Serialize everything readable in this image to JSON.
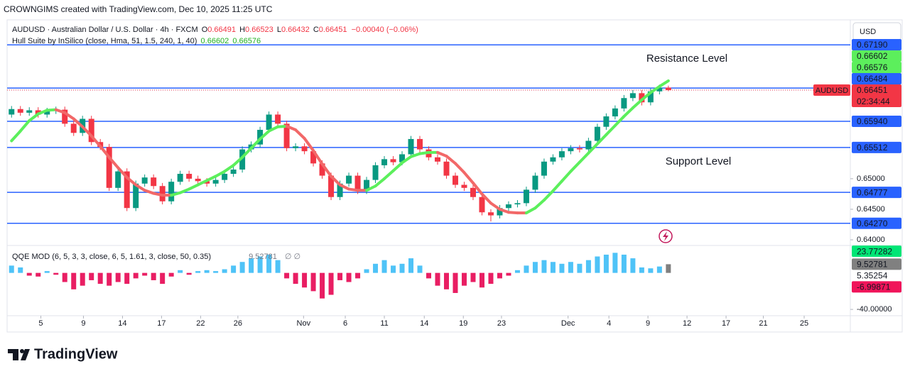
{
  "header": {
    "attribution": "CROWNGIMS created with TradingView.com, Dec 10, 2025 11:25 UTC",
    "logo": "TradingView",
    "currency": "USD",
    "annotations": [
      "Resistance Level",
      "Support Level"
    ]
  },
  "chart_data": [
    {
      "type": "candlestick",
      "symbol_line": "AUDUSD · Australian Dollar / U.S. Dollar · 4h · FXCM",
      "ohlc_letters": [
        "O",
        "H",
        "L",
        "C"
      ],
      "change": "−0.00040 (−0.06%)",
      "up_color": "#089981",
      "down_color": "#f23645",
      "ohlc": [
        [
          0.6605,
          0.6619,
          0.66,
          0.6614
        ],
        [
          0.6614,
          0.6619,
          0.6603,
          0.6608
        ],
        [
          0.6608,
          0.6617,
          0.6603,
          0.6612
        ],
        [
          0.6612,
          0.6617,
          0.66,
          0.6605
        ],
        [
          0.6605,
          0.6616,
          0.66,
          0.6611
        ],
        [
          0.6611,
          0.6618,
          0.6606,
          0.6613
        ],
        [
          0.6613,
          0.6618,
          0.6585,
          0.659
        ],
        [
          0.659,
          0.6595,
          0.657,
          0.6575
        ],
        [
          0.6575,
          0.6603,
          0.657,
          0.6598
        ],
        [
          0.6598,
          0.6603,
          0.6555,
          0.656
        ],
        [
          0.656,
          0.6565,
          0.6547,
          0.6552
        ],
        [
          0.6552,
          0.6557,
          0.648,
          0.6485
        ],
        [
          0.6485,
          0.6517,
          0.648,
          0.6512
        ],
        [
          0.6512,
          0.6517,
          0.6447,
          0.6452
        ],
        [
          0.6452,
          0.6497,
          0.6447,
          0.6492
        ],
        [
          0.6492,
          0.6507,
          0.6487,
          0.6502
        ],
        [
          0.6502,
          0.6507,
          0.6483,
          0.6488
        ],
        [
          0.6488,
          0.6493,
          0.6458,
          0.6463
        ],
        [
          0.6463,
          0.65,
          0.6458,
          0.6495
        ],
        [
          0.6495,
          0.6513,
          0.649,
          0.6508
        ],
        [
          0.6508,
          0.6513,
          0.6495,
          0.65
        ],
        [
          0.65,
          0.6505,
          0.6491,
          0.6496
        ],
        [
          0.6496,
          0.6501,
          0.6487,
          0.6492
        ],
        [
          0.6492,
          0.6503,
          0.6487,
          0.6498
        ],
        [
          0.6498,
          0.6513,
          0.6493,
          0.6508
        ],
        [
          0.6508,
          0.652,
          0.6503,
          0.6515
        ],
        [
          0.6515,
          0.6553,
          0.651,
          0.6548
        ],
        [
          0.6548,
          0.6561,
          0.6543,
          0.6556
        ],
        [
          0.6556,
          0.6585,
          0.6551,
          0.658
        ],
        [
          0.658,
          0.661,
          0.6575,
          0.6605
        ],
        [
          0.6605,
          0.661,
          0.6585,
          0.659
        ],
        [
          0.659,
          0.6595,
          0.6545,
          0.655
        ],
        [
          0.655,
          0.6558,
          0.6545,
          0.6553
        ],
        [
          0.6553,
          0.6558,
          0.654,
          0.6545
        ],
        [
          0.6545,
          0.655,
          0.652,
          0.6525
        ],
        [
          0.6525,
          0.653,
          0.65,
          0.6505
        ],
        [
          0.6505,
          0.651,
          0.6465,
          0.647
        ],
        [
          0.647,
          0.6497,
          0.6465,
          0.6492
        ],
        [
          0.6492,
          0.651,
          0.6487,
          0.6505
        ],
        [
          0.6505,
          0.651,
          0.6475,
          0.648
        ],
        [
          0.648,
          0.6503,
          0.6475,
          0.6498
        ],
        [
          0.6498,
          0.6527,
          0.6493,
          0.6522
        ],
        [
          0.6522,
          0.6537,
          0.6517,
          0.6532
        ],
        [
          0.6532,
          0.6537,
          0.6522,
          0.6527
        ],
        [
          0.6527,
          0.6545,
          0.6522,
          0.654
        ],
        [
          0.654,
          0.657,
          0.6535,
          0.6565
        ],
        [
          0.6565,
          0.657,
          0.6543,
          0.6548
        ],
        [
          0.6548,
          0.6553,
          0.653,
          0.6535
        ],
        [
          0.6535,
          0.654,
          0.6523,
          0.6528
        ],
        [
          0.6528,
          0.6533,
          0.65,
          0.6505
        ],
        [
          0.6505,
          0.651,
          0.6485,
          0.649
        ],
        [
          0.649,
          0.6495,
          0.648,
          0.6485
        ],
        [
          0.6485,
          0.649,
          0.6465,
          0.647
        ],
        [
          0.647,
          0.6475,
          0.644,
          0.6445
        ],
        [
          0.6445,
          0.645,
          0.643,
          0.644
        ],
        [
          0.644,
          0.6457,
          0.6435,
          0.6452
        ],
        [
          0.6452,
          0.6463,
          0.6447,
          0.6458
        ],
        [
          0.6458,
          0.6465,
          0.6453,
          0.646
        ],
        [
          0.646,
          0.6487,
          0.6455,
          0.6482
        ],
        [
          0.6482,
          0.651,
          0.6477,
          0.6505
        ],
        [
          0.6505,
          0.6533,
          0.65,
          0.6528
        ],
        [
          0.6528,
          0.654,
          0.6523,
          0.6535
        ],
        [
          0.6535,
          0.655,
          0.653,
          0.6545
        ],
        [
          0.6545,
          0.6555,
          0.654,
          0.655
        ],
        [
          0.655,
          0.6555,
          0.6543,
          0.6548
        ],
        [
          0.6548,
          0.6567,
          0.6543,
          0.6562
        ],
        [
          0.6562,
          0.659,
          0.6557,
          0.6585
        ],
        [
          0.6585,
          0.6607,
          0.658,
          0.6602
        ],
        [
          0.6602,
          0.662,
          0.6597,
          0.6615
        ],
        [
          0.6615,
          0.6637,
          0.661,
          0.6632
        ],
        [
          0.6632,
          0.6645,
          0.6627,
          0.664
        ],
        [
          0.664,
          0.6645,
          0.662,
          0.6625
        ],
        [
          0.6625,
          0.6648,
          0.662,
          0.6643
        ],
        [
          0.6643,
          0.6654,
          0.6638,
          0.66491
        ],
        [
          0.66491,
          0.66523,
          0.66432,
          0.66451
        ]
      ],
      "xlim": [
        -0.5,
        94.5
      ],
      "xticks": [
        {
          "value": 3.3,
          "label": "5"
        },
        {
          "value": 8.1,
          "label": "9"
        },
        {
          "value": 12.5,
          "label": "14"
        },
        {
          "value": 16.9,
          "label": "17"
        },
        {
          "value": 21.3,
          "label": "22"
        },
        {
          "value": 25.5,
          "label": "26"
        },
        {
          "value": 32.9,
          "label": "Nov"
        },
        {
          "value": 37.6,
          "label": "6"
        },
        {
          "value": 42.0,
          "label": "11"
        },
        {
          "value": 46.5,
          "label": "14"
        },
        {
          "value": 50.9,
          "label": "19"
        },
        {
          "value": 55.2,
          "label": "23"
        },
        {
          "value": 62.7,
          "label": "Dec"
        },
        {
          "value": 67.3,
          "label": "4"
        },
        {
          "value": 71.7,
          "label": "9"
        },
        {
          "value": 76.1,
          "label": "12"
        },
        {
          "value": 80.5,
          "label": "17"
        },
        {
          "value": 84.7,
          "label": "21"
        },
        {
          "value": 89.3,
          "label": "25"
        }
      ],
      "ylim": [
        0.63919,
        0.676
      ],
      "yticks": [
        {
          "value": 0.64,
          "label": "0.64000"
        },
        {
          "value": 0.645,
          "label": "0.64500"
        },
        {
          "value": 0.65,
          "label": "0.65000"
        }
      ],
      "levels": {
        "color": "#2962ff",
        "values": [
          {
            "value": 0.6719,
            "label": "0.67190"
          },
          0.66484,
          {
            "value": 0.6594,
            "label": "0.65940"
          },
          0.65512,
          0.64777,
          {
            "value": 0.6427,
            "label": "0.64270"
          }
        ]
      },
      "hull": {
        "name": "Hull Suite by InSilico (close, Hma, 51, 1.5, 240, 1, 40)",
        "up_color": "#5cef5c",
        "down_color": "#f26868",
        "band": 0.66576,
        "values": [
          0.6562,
          0.6578,
          0.6595,
          0.6606,
          0.6612,
          0.6613,
          0.6608,
          0.6598,
          0.6585,
          0.657,
          0.6553,
          0.6535,
          0.6518,
          0.6502,
          0.649,
          0.6481,
          0.6476,
          0.6473,
          0.6473,
          0.6477,
          0.6483,
          0.649,
          0.6497,
          0.6504,
          0.6512,
          0.6522,
          0.6535,
          0.655,
          0.6565,
          0.6578,
          0.6585,
          0.6586,
          0.658,
          0.6566,
          0.6546,
          0.6524,
          0.6504,
          0.649,
          0.6483,
          0.6481,
          0.6481,
          0.6488,
          0.65,
          0.6513,
          0.6526,
          0.6536,
          0.6541,
          0.6543,
          0.6543,
          0.6537,
          0.6525,
          0.651,
          0.6493,
          0.6475,
          0.646,
          0.645,
          0.6445,
          0.6444,
          0.6444,
          0.6452,
          0.6465,
          0.648,
          0.6496,
          0.6512,
          0.6527,
          0.6542,
          0.6557,
          0.6572,
          0.6587,
          0.6602,
          0.6616,
          0.6629,
          0.6641,
          0.6651,
          0.66602
        ]
      },
      "last_price": {
        "symbol": "AUDUSD",
        "countdown": "02:34:44",
        "color": "#f23645"
      }
    },
    {
      "type": "bar",
      "name": "QQE MOD (6, 5, 3, 3, close, 6, 5, 1.61, 3, close, 50, 0.35)",
      "na_marks": "∅ ∅",
      "up_color": "#4fc3f7",
      "down_color": "#e91e63",
      "last_color": "#808080",
      "values": [
        8,
        6,
        -3,
        -4,
        2,
        -2,
        -10,
        -18,
        -14,
        -8,
        -12,
        -14,
        -10,
        -12,
        -6,
        -3,
        -8,
        -12,
        -4,
        3,
        -2,
        2,
        3,
        2,
        4,
        8,
        12,
        16,
        18,
        20,
        14,
        -6,
        -12,
        -16,
        -20,
        -28,
        -24,
        -8,
        -10,
        -6,
        4,
        10,
        14,
        8,
        10,
        16,
        8,
        -6,
        -14,
        -18,
        -22,
        -14,
        -10,
        -16,
        -12,
        -6,
        -3,
        3,
        8,
        12,
        14,
        12,
        10,
        12,
        10,
        14,
        18,
        20,
        22,
        20,
        16,
        6,
        5,
        7,
        9.52781
      ],
      "ylim": [
        -43,
        28.5
      ],
      "yticks": [
        {
          "value": -40,
          "label": "-40.00000"
        }
      ],
      "markers": [
        {
          "value": 23.77282,
          "color": "#00e676"
        },
        {
          "value": 5.35254,
          "color": null
        },
        {
          "value": -6.99871,
          "color": "#f0145a"
        }
      ]
    }
  ]
}
